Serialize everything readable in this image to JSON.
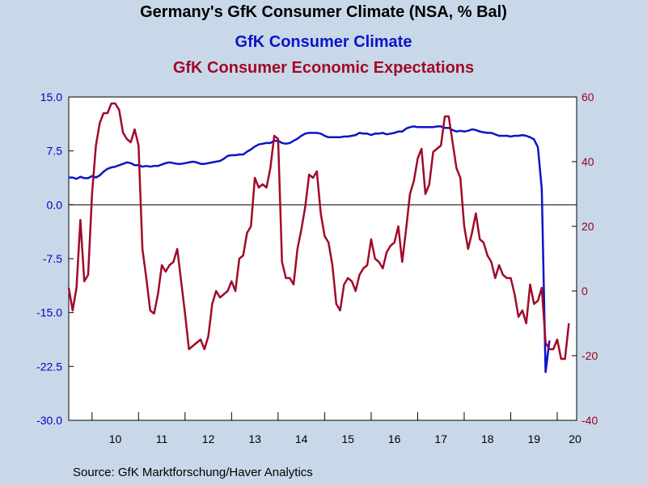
{
  "header": {
    "title": "Germany's GfK Consumer Climate (NSA, % Bal)"
  },
  "source": "Source:  GfK Marktforschung/Haver Analytics",
  "colors": {
    "background": "#c9d8e8",
    "plot_background": "#ffffff",
    "climate": "#0a14c8",
    "expectations": "#a00a28"
  },
  "chart_data": {
    "type": "line",
    "x_start": "2009-07",
    "x_end": "2020-06",
    "x_tick_labels": [
      "10",
      "11",
      "12",
      "13",
      "14",
      "15",
      "16",
      "17",
      "18",
      "19",
      "20"
    ],
    "left_axis": {
      "ylim": [
        -30,
        15
      ],
      "ticks": [
        "15.0",
        "7.5",
        "0.0",
        "-7.5",
        "-15.0",
        "-22.5",
        "-30.0"
      ]
    },
    "right_axis": {
      "ylim": [
        -40,
        60
      ],
      "ticks": [
        "60",
        "40",
        "20",
        "0",
        "-20",
        "-40"
      ]
    },
    "grid": false,
    "zero_line": true,
    "series": [
      {
        "name": "GfK Consumer Climate",
        "axis": "left",
        "color": "#0a14c8",
        "points": [
          [
            "2009-07",
            3.8
          ],
          [
            "2009-08",
            3.8
          ],
          [
            "2009-09",
            3.6
          ],
          [
            "2009-10",
            3.9
          ],
          [
            "2009-11",
            3.7
          ],
          [
            "2009-12",
            3.7
          ],
          [
            "2010-01",
            4.0
          ],
          [
            "2010-02",
            3.8
          ],
          [
            "2010-03",
            4.1
          ],
          [
            "2010-04",
            4.6
          ],
          [
            "2010-05",
            5.0
          ],
          [
            "2010-06",
            5.2
          ],
          [
            "2010-07",
            5.3
          ],
          [
            "2010-08",
            5.5
          ],
          [
            "2010-09",
            5.7
          ],
          [
            "2010-10",
            5.9
          ],
          [
            "2010-11",
            5.8
          ],
          [
            "2010-12",
            5.5
          ],
          [
            "2011-01",
            5.5
          ],
          [
            "2011-02",
            5.3
          ],
          [
            "2011-03",
            5.4
          ],
          [
            "2011-04",
            5.3
          ],
          [
            "2011-05",
            5.4
          ],
          [
            "2011-06",
            5.4
          ],
          [
            "2011-07",
            5.6
          ],
          [
            "2011-08",
            5.8
          ],
          [
            "2011-09",
            5.9
          ],
          [
            "2011-10",
            5.8
          ],
          [
            "2011-11",
            5.7
          ],
          [
            "2011-12",
            5.7
          ],
          [
            "2012-01",
            5.8
          ],
          [
            "2012-02",
            5.9
          ],
          [
            "2012-03",
            6.0
          ],
          [
            "2012-04",
            5.9
          ],
          [
            "2012-05",
            5.7
          ],
          [
            "2012-06",
            5.7
          ],
          [
            "2012-07",
            5.8
          ],
          [
            "2012-08",
            5.9
          ],
          [
            "2012-09",
            6.0
          ],
          [
            "2012-10",
            6.1
          ],
          [
            "2012-11",
            6.4
          ],
          [
            "2012-12",
            6.8
          ],
          [
            "2013-01",
            6.9
          ],
          [
            "2013-02",
            6.9
          ],
          [
            "2013-03",
            7.0
          ],
          [
            "2013-04",
            7.0
          ],
          [
            "2013-05",
            7.4
          ],
          [
            "2013-06",
            7.7
          ],
          [
            "2013-07",
            8.1
          ],
          [
            "2013-08",
            8.4
          ],
          [
            "2013-09",
            8.5
          ],
          [
            "2013-10",
            8.6
          ],
          [
            "2013-11",
            8.6
          ],
          [
            "2013-12",
            8.9
          ],
          [
            "2014-01",
            8.9
          ],
          [
            "2014-02",
            8.6
          ],
          [
            "2014-03",
            8.5
          ],
          [
            "2014-04",
            8.6
          ],
          [
            "2014-05",
            8.9
          ],
          [
            "2014-06",
            9.2
          ],
          [
            "2014-07",
            9.6
          ],
          [
            "2014-08",
            9.9
          ],
          [
            "2014-09",
            10.0
          ],
          [
            "2014-10",
            10.0
          ],
          [
            "2014-11",
            10.0
          ],
          [
            "2014-12",
            9.9
          ],
          [
            "2015-01",
            9.6
          ],
          [
            "2015-02",
            9.4
          ],
          [
            "2015-03",
            9.4
          ],
          [
            "2015-04",
            9.4
          ],
          [
            "2015-05",
            9.4
          ],
          [
            "2015-06",
            9.5
          ],
          [
            "2015-07",
            9.5
          ],
          [
            "2015-08",
            9.6
          ],
          [
            "2015-09",
            9.7
          ],
          [
            "2015-10",
            10.0
          ],
          [
            "2015-11",
            9.9
          ],
          [
            "2015-12",
            9.9
          ],
          [
            "2016-01",
            9.7
          ],
          [
            "2016-02",
            9.9
          ],
          [
            "2016-03",
            9.9
          ],
          [
            "2016-04",
            10.0
          ],
          [
            "2016-05",
            9.8
          ],
          [
            "2016-06",
            9.9
          ],
          [
            "2016-07",
            10.0
          ],
          [
            "2016-08",
            10.2
          ],
          [
            "2016-09",
            10.2
          ],
          [
            "2016-10",
            10.6
          ],
          [
            "2016-11",
            10.8
          ],
          [
            "2016-12",
            10.9
          ],
          [
            "2017-01",
            10.8
          ],
          [
            "2017-02",
            10.8
          ],
          [
            "2017-03",
            10.8
          ],
          [
            "2017-04",
            10.8
          ],
          [
            "2017-05",
            10.8
          ],
          [
            "2017-06",
            10.9
          ],
          [
            "2017-07",
            10.9
          ],
          [
            "2017-08",
            10.7
          ],
          [
            "2017-09",
            10.7
          ],
          [
            "2017-10",
            10.4
          ],
          [
            "2017-11",
            10.2
          ],
          [
            "2017-12",
            10.3
          ],
          [
            "2018-01",
            10.2
          ],
          [
            "2018-02",
            10.3
          ],
          [
            "2018-03",
            10.5
          ],
          [
            "2018-04",
            10.4
          ],
          [
            "2018-05",
            10.2
          ],
          [
            "2018-06",
            10.1
          ],
          [
            "2018-07",
            10.0
          ],
          [
            "2018-08",
            10.0
          ],
          [
            "2018-09",
            9.8
          ],
          [
            "2018-10",
            9.6
          ],
          [
            "2018-11",
            9.6
          ],
          [
            "2018-12",
            9.6
          ],
          [
            "2019-01",
            9.5
          ],
          [
            "2019-02",
            9.6
          ],
          [
            "2019-03",
            9.6
          ],
          [
            "2019-04",
            9.7
          ],
          [
            "2019-05",
            9.6
          ],
          [
            "2019-06",
            9.4
          ],
          [
            "2019-07",
            9.1
          ],
          [
            "2019-08",
            8.0
          ],
          [
            "2019-09",
            2.2
          ],
          [
            "2019-10",
            -23.3
          ],
          [
            "2019-11",
            -18.9
          ]
        ]
      },
      {
        "name": "GfK Consumer Economic Expectations",
        "axis": "right",
        "color": "#a00a28",
        "points": [
          [
            "2009-07",
            1
          ],
          [
            "2009-08",
            -6
          ],
          [
            "2009-09",
            1
          ],
          [
            "2009-10",
            22
          ],
          [
            "2009-11",
            3
          ],
          [
            "2009-12",
            5
          ],
          [
            "2010-01",
            30
          ],
          [
            "2010-02",
            45
          ],
          [
            "2010-03",
            52
          ],
          [
            "2010-04",
            55
          ],
          [
            "2010-05",
            55
          ],
          [
            "2010-06",
            58
          ],
          [
            "2010-07",
            58
          ],
          [
            "2010-08",
            56
          ],
          [
            "2010-09",
            49
          ],
          [
            "2010-10",
            47
          ],
          [
            "2010-11",
            46
          ],
          [
            "2010-12",
            50
          ],
          [
            "2011-01",
            45
          ],
          [
            "2011-02",
            13
          ],
          [
            "2011-03",
            4
          ],
          [
            "2011-04",
            -6
          ],
          [
            "2011-05",
            -7
          ],
          [
            "2011-06",
            -1
          ],
          [
            "2011-07",
            8
          ],
          [
            "2011-08",
            6
          ],
          [
            "2011-09",
            8
          ],
          [
            "2011-10",
            9
          ],
          [
            "2011-11",
            13
          ],
          [
            "2011-12",
            3
          ],
          [
            "2012-01",
            -7
          ],
          [
            "2012-02",
            -18
          ],
          [
            "2012-03",
            -17
          ],
          [
            "2012-04",
            -16
          ],
          [
            "2012-05",
            -15
          ],
          [
            "2012-06",
            -18
          ],
          [
            "2012-07",
            -14
          ],
          [
            "2012-08",
            -4
          ],
          [
            "2012-09",
            0
          ],
          [
            "2012-10",
            -2
          ],
          [
            "2012-11",
            -1
          ],
          [
            "2012-12",
            0
          ],
          [
            "2013-01",
            3
          ],
          [
            "2013-02",
            0
          ],
          [
            "2013-03",
            10
          ],
          [
            "2013-04",
            11
          ],
          [
            "2013-05",
            18
          ],
          [
            "2013-06",
            20
          ],
          [
            "2013-07",
            35
          ],
          [
            "2013-08",
            32
          ],
          [
            "2013-09",
            33
          ],
          [
            "2013-10",
            32
          ],
          [
            "2013-11",
            38
          ],
          [
            "2013-12",
            48
          ],
          [
            "2014-01",
            47
          ],
          [
            "2014-02",
            9
          ],
          [
            "2014-03",
            4
          ],
          [
            "2014-04",
            4
          ],
          [
            "2014-05",
            2
          ],
          [
            "2014-06",
            13
          ],
          [
            "2014-07",
            19
          ],
          [
            "2014-08",
            26
          ],
          [
            "2014-09",
            36
          ],
          [
            "2014-10",
            35
          ],
          [
            "2014-11",
            37
          ],
          [
            "2014-12",
            24
          ],
          [
            "2015-01",
            17
          ],
          [
            "2015-02",
            15
          ],
          [
            "2015-03",
            8
          ],
          [
            "2015-04",
            -4
          ],
          [
            "2015-05",
            -6
          ],
          [
            "2015-06",
            2
          ],
          [
            "2015-07",
            4
          ],
          [
            "2015-08",
            3
          ],
          [
            "2015-09",
            0
          ],
          [
            "2015-10",
            5
          ],
          [
            "2015-11",
            7
          ],
          [
            "2015-12",
            8
          ],
          [
            "2016-01",
            16
          ],
          [
            "2016-02",
            10
          ],
          [
            "2016-03",
            9
          ],
          [
            "2016-04",
            7
          ],
          [
            "2016-05",
            12
          ],
          [
            "2016-06",
            14
          ],
          [
            "2016-07",
            15
          ],
          [
            "2016-08",
            20
          ],
          [
            "2016-09",
            9
          ],
          [
            "2016-10",
            19
          ],
          [
            "2016-11",
            30
          ],
          [
            "2016-12",
            34
          ],
          [
            "2017-01",
            41
          ],
          [
            "2017-02",
            44
          ],
          [
            "2017-03",
            30
          ],
          [
            "2017-04",
            33
          ],
          [
            "2017-05",
            43
          ],
          [
            "2017-06",
            44
          ],
          [
            "2017-07",
            45
          ],
          [
            "2017-08",
            54
          ],
          [
            "2017-09",
            54
          ],
          [
            "2017-10",
            46
          ],
          [
            "2017-11",
            38
          ],
          [
            "2017-12",
            35
          ],
          [
            "2018-01",
            20
          ],
          [
            "2018-02",
            13
          ],
          [
            "2018-03",
            18
          ],
          [
            "2018-04",
            24
          ],
          [
            "2018-05",
            16
          ],
          [
            "2018-06",
            15
          ],
          [
            "2018-07",
            11
          ],
          [
            "2018-08",
            9
          ],
          [
            "2018-09",
            4
          ],
          [
            "2018-10",
            8
          ],
          [
            "2018-11",
            5
          ],
          [
            "2018-12",
            4
          ],
          [
            "2019-01",
            4
          ],
          [
            "2019-02",
            -1
          ],
          [
            "2019-03",
            -8
          ],
          [
            "2019-04",
            -6
          ],
          [
            "2019-05",
            -10
          ],
          [
            "2019-06",
            2
          ],
          [
            "2019-07",
            -4
          ],
          [
            "2019-08",
            -3
          ],
          [
            "2019-09",
            1
          ],
          [
            "2019-10",
            -16
          ],
          [
            "2019-11",
            -18
          ],
          [
            "2019-12",
            -18
          ],
          [
            "2020-01",
            -15
          ],
          [
            "2020-02",
            -21
          ],
          [
            "2020-03",
            -21
          ],
          [
            "2020-04",
            -10
          ]
        ]
      }
    ]
  }
}
